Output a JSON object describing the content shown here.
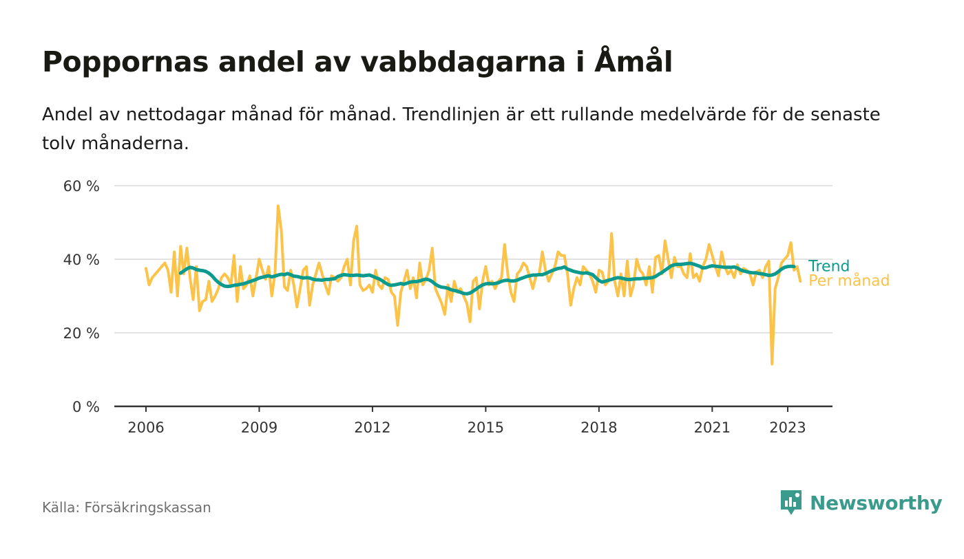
{
  "title": "Poppornas andel av vabbdagarna i Åmål",
  "subtitle": "Andel av nettodagar månad för månad. Trendlinjen är ett rullande medelvärde för de senaste tolv månaderna.",
  "source": "Källa: Försäkringskassan",
  "brand": {
    "name": "Newsworthy",
    "icon": "newsworthy-logo-icon",
    "color": "#3a9a8c"
  },
  "chart_data": {
    "type": "line",
    "ylim": [
      0,
      60
    ],
    "yticks": [
      0,
      20,
      40,
      60
    ],
    "ytick_labels": [
      "0 %",
      "20 %",
      "40 %",
      "60 %"
    ],
    "xticks": [
      2006,
      2009,
      2012,
      2015,
      2018,
      2021,
      2023
    ],
    "xtick_labels": [
      "2006",
      "2009",
      "2012",
      "2015",
      "2018",
      "2021",
      "2023"
    ],
    "grid": true,
    "legend": "inline labels at line ends (right)",
    "series": [
      {
        "name": "Per månad",
        "color": "#fcc34a",
        "x_start": "2006-01",
        "frequency": "monthly",
        "values": [
          37.5,
          33,
          35,
          36,
          37,
          38,
          39,
          37,
          31,
          42,
          30,
          43.5,
          36,
          43,
          35,
          29,
          38,
          26,
          28.5,
          29,
          34,
          28.5,
          30,
          32,
          35,
          36,
          35,
          33,
          41,
          28.5,
          38,
          32,
          33,
          35.5,
          30,
          35,
          40,
          37,
          34.5,
          38,
          30,
          36,
          54.5,
          48,
          32.5,
          31.5,
          37,
          33,
          27,
          32,
          37,
          38,
          27.5,
          33,
          36,
          39,
          36,
          33,
          30.5,
          35.5,
          35,
          34,
          35,
          38,
          40,
          33,
          45,
          49,
          33,
          31.5,
          32,
          33,
          31,
          37,
          33,
          32,
          35,
          34.5,
          31,
          30,
          22,
          31,
          34,
          37,
          32,
          35,
          29.5,
          39,
          33,
          34.5,
          37,
          43,
          32,
          30,
          28,
          25,
          33,
          28.5,
          34,
          31,
          32,
          30,
          28,
          23,
          34,
          35,
          26.5,
          34,
          38,
          33,
          34,
          32,
          34,
          35,
          44,
          36,
          31,
          28.5,
          36,
          37,
          39,
          38,
          35,
          32,
          35.5,
          36,
          42,
          37,
          34,
          36,
          38,
          42,
          41,
          41,
          36,
          27.5,
          32,
          35,
          33,
          38,
          37,
          36,
          34,
          31,
          37,
          36.5,
          33,
          34,
          47,
          34,
          30,
          36,
          30,
          39.5,
          30,
          33,
          40,
          37,
          36,
          33,
          38,
          31,
          40.5,
          41,
          36,
          45,
          40,
          35,
          40.5,
          38,
          38,
          36,
          35,
          41.5,
          35,
          36,
          34,
          38,
          40,
          44,
          41,
          38,
          35.5,
          42,
          38,
          36,
          37,
          35,
          38.5,
          36,
          37.5,
          37,
          36,
          33,
          36.5,
          37,
          35,
          38,
          39.5,
          11.5,
          32,
          35,
          39,
          40,
          41,
          44.5,
          37,
          38,
          34
        ]
      },
      {
        "name": "Trend",
        "color": "#0b9a8d",
        "x_start": "2006-12",
        "frequency": "monthly",
        "values": [
          36.2,
          36.8,
          37.4,
          37.8,
          37.6,
          37.2,
          37,
          36.9,
          36.7,
          36.2,
          35.5,
          34.5,
          33.7,
          33.1,
          32.7,
          32.6,
          32.7,
          32.9,
          33,
          33.2,
          33.3,
          33.6,
          33.9,
          34.2,
          34.5,
          34.9,
          35.1,
          35.3,
          35.5,
          35.2,
          35.4,
          35.7,
          35.9,
          35.8,
          36.1,
          35.8,
          35.4,
          35.3,
          35.1,
          34.9,
          35,
          34.9,
          34.6,
          34.4,
          34.4,
          34.3,
          34.5,
          34.5,
          34.6,
          34.7,
          35.3,
          35.6,
          35.8,
          35.7,
          35.6,
          35.6,
          35.7,
          35.6,
          35.5,
          35.6,
          35.7,
          35.4,
          35,
          34.7,
          34.2,
          33.6,
          33.1,
          32.9,
          33,
          33.2,
          33.4,
          33.2,
          33.5,
          33.8,
          33.9,
          33.9,
          34.1,
          34.4,
          34.6,
          34.4,
          33.9,
          33.2,
          32.7,
          32.4,
          32.3,
          32.1,
          31.7,
          31.5,
          31.3,
          31,
          30.7,
          30.6,
          30.8,
          31.3,
          31.9,
          32.5,
          33,
          33.3,
          33.4,
          33.3,
          33.4,
          33.6,
          34,
          34.2,
          34.3,
          34.1,
          34.1,
          34.3,
          34.7,
          35,
          35.3,
          35.5,
          35.7,
          35.7,
          35.8,
          35.8,
          36.1,
          36.5,
          36.9,
          37.2,
          37.5,
          37.6,
          37.9,
          37.3,
          37,
          36.7,
          36.5,
          36.3,
          36.2,
          36.3,
          36.1,
          35.8,
          35,
          34.2,
          33.8,
          34,
          34.3,
          34.5,
          34.8,
          35,
          34.9,
          34.7,
          34.5,
          34.5,
          34.6,
          34.7,
          34.7,
          34.8,
          34.8,
          34.9,
          35,
          35.3,
          35.9,
          36.4,
          37,
          37.6,
          38.2,
          38.5,
          38.6,
          38.6,
          38.7,
          38.8,
          38.9,
          38.7,
          38.4,
          38.1,
          37.6,
          37.7,
          38,
          38.2,
          38.1,
          38,
          37.9,
          37.8,
          37.8,
          37.8,
          37.9,
          37.6,
          37.1,
          36.8,
          36.6,
          36.4,
          36.3,
          36.3,
          36.1,
          36,
          35.8,
          35.6,
          35.7,
          36,
          36.6,
          37.3,
          37.8,
          38,
          38.1,
          38
        ]
      }
    ]
  }
}
